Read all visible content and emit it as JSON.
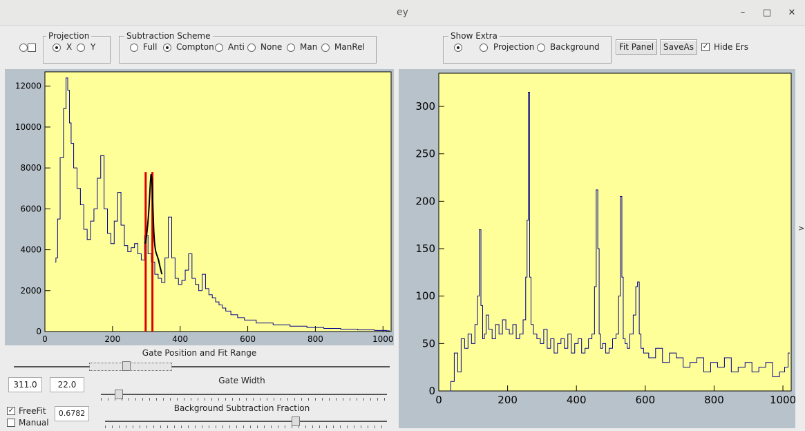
{
  "window": {
    "title": "ey",
    "minimize": "–",
    "maximize": "□",
    "close": "✕"
  },
  "projection": {
    "legend": "Projection",
    "options": [
      "X",
      "Y"
    ],
    "selected": "X"
  },
  "subtraction": {
    "legend": "Subtraction Scheme",
    "options": [
      "Full",
      "Compton",
      "Anti",
      "None",
      "Man",
      "ManRel"
    ],
    "selected": "Compton"
  },
  "show_extra": {
    "legend": "Show Extra",
    "options": [
      "",
      "Projection",
      "Background"
    ],
    "selected": ""
  },
  "buttons": {
    "fit_panel": "Fit Panel",
    "save_as": "SaveAs"
  },
  "hide_ers": {
    "label": "Hide Ers",
    "checked": true
  },
  "controls": {
    "gate_label": "Gate Position and Fit Range",
    "gate_position": "311.0",
    "gate_width_value": "22.0",
    "gate_width_label": "Gate Width",
    "freefit_label": "FreeFit",
    "freefit_checked": true,
    "manual_label": "Manual",
    "manual_checked": false,
    "bg_fraction": "0.6782",
    "bg_fraction_label": "Background Subtraction Fraction"
  },
  "colors": {
    "plot_bg": "#ffff99",
    "line": "#00008b",
    "gate": "#dd0000",
    "fit": "#000000"
  },
  "chart_data": [
    {
      "type": "line",
      "title": "",
      "xlabel": "",
      "ylabel": "",
      "xlim": [
        0,
        1024
      ],
      "ylim": [
        0,
        12700
      ],
      "xticks": [
        "0",
        "200",
        "400",
        "600",
        "800",
        "1000"
      ],
      "yticks": [
        "0",
        "2000",
        "4000",
        "6000",
        "8000",
        "10000",
        "12000"
      ],
      "series": [
        {
          "x": [
            30,
            35,
            40,
            50,
            60,
            65,
            70,
            75,
            80,
            90,
            100,
            110,
            120,
            130,
            140,
            150,
            160,
            170,
            180,
            190,
            200,
            210,
            220,
            230,
            240,
            250,
            260,
            270,
            280,
            290,
            300,
            310,
            320,
            330,
            340,
            350,
            360,
            370,
            380,
            390,
            400,
            410,
            420,
            430,
            440,
            450,
            460,
            470,
            480,
            490,
            500,
            510,
            520,
            530,
            540,
            560,
            580,
            600,
            650,
            700,
            750,
            800,
            850,
            900,
            950,
            1000,
            1020
          ],
          "y": [
            3400,
            3600,
            5500,
            8500,
            10900,
            12400,
            11800,
            10200,
            9200,
            8000,
            7000,
            6200,
            5000,
            4500,
            5400,
            6000,
            7500,
            8600,
            6000,
            4800,
            4300,
            5400,
            6800,
            5200,
            4200,
            3900,
            4100,
            4300,
            3800,
            3500,
            4700,
            3800,
            3400,
            2800,
            2600,
            2400,
            3600,
            5600,
            3600,
            2600,
            2300,
            2500,
            3000,
            3800,
            2600,
            2300,
            2000,
            2800,
            2100,
            1800,
            1650,
            1450,
            1300,
            1150,
            1000,
            820,
            680,
            560,
            420,
            330,
            260,
            200,
            150,
            110,
            80,
            55,
            40
          ]
        }
      ],
      "gates": [
        298,
        318
      ],
      "fit": {
        "x": [
          296,
          298,
          300,
          302,
          304,
          306,
          308,
          310,
          312,
          314,
          316,
          318,
          320,
          322,
          324,
          326,
          328,
          332,
          336,
          340,
          346
        ],
        "y": [
          4300,
          4400,
          4600,
          4900,
          5200,
          5600,
          6100,
          6700,
          7300,
          7700,
          7500,
          6800,
          5800,
          4900,
          4400,
          4100,
          3900,
          3700,
          3500,
          3200,
          2800
        ]
      }
    },
    {
      "type": "line",
      "title": "",
      "xlabel": "",
      "ylabel": "",
      "xlim": [
        0,
        1024
      ],
      "ylim": [
        0,
        335
      ],
      "xticks": [
        "0",
        "200",
        "400",
        "600",
        "800",
        "1000"
      ],
      "yticks": [
        "0",
        "50",
        "100",
        "150",
        "200",
        "250",
        "300"
      ],
      "series": [
        {
          "x": [
            30,
            40,
            50,
            60,
            70,
            80,
            90,
            100,
            110,
            115,
            120,
            125,
            130,
            135,
            140,
            150,
            160,
            170,
            180,
            190,
            200,
            210,
            220,
            230,
            240,
            250,
            255,
            258,
            262,
            266,
            270,
            280,
            290,
            300,
            310,
            320,
            330,
            340,
            350,
            360,
            370,
            380,
            390,
            400,
            410,
            420,
            430,
            440,
            450,
            455,
            460,
            464,
            468,
            472,
            480,
            490,
            500,
            510,
            520,
            525,
            530,
            534,
            538,
            545,
            550,
            560,
            570,
            575,
            580,
            585,
            590,
            600,
            620,
            640,
            660,
            680,
            700,
            720,
            740,
            760,
            780,
            800,
            820,
            840,
            860,
            880,
            900,
            920,
            940,
            960,
            980,
            1000,
            1010,
            1020
          ],
          "y": [
            0,
            10,
            40,
            20,
            55,
            45,
            60,
            50,
            70,
            100,
            170,
            90,
            55,
            60,
            80,
            65,
            55,
            70,
            60,
            75,
            65,
            60,
            70,
            55,
            60,
            75,
            120,
            180,
            315,
            120,
            70,
            60,
            55,
            50,
            65,
            45,
            55,
            40,
            50,
            55,
            45,
            60,
            40,
            50,
            55,
            40,
            45,
            55,
            60,
            110,
            212,
            150,
            60,
            45,
            50,
            40,
            45,
            55,
            60,
            100,
            205,
            120,
            55,
            50,
            45,
            60,
            80,
            110,
            115,
            60,
            45,
            40,
            35,
            45,
            30,
            40,
            35,
            25,
            30,
            35,
            20,
            30,
            25,
            35,
            20,
            25,
            30,
            20,
            25,
            30,
            15,
            20,
            25,
            40
          ]
        }
      ]
    }
  ]
}
